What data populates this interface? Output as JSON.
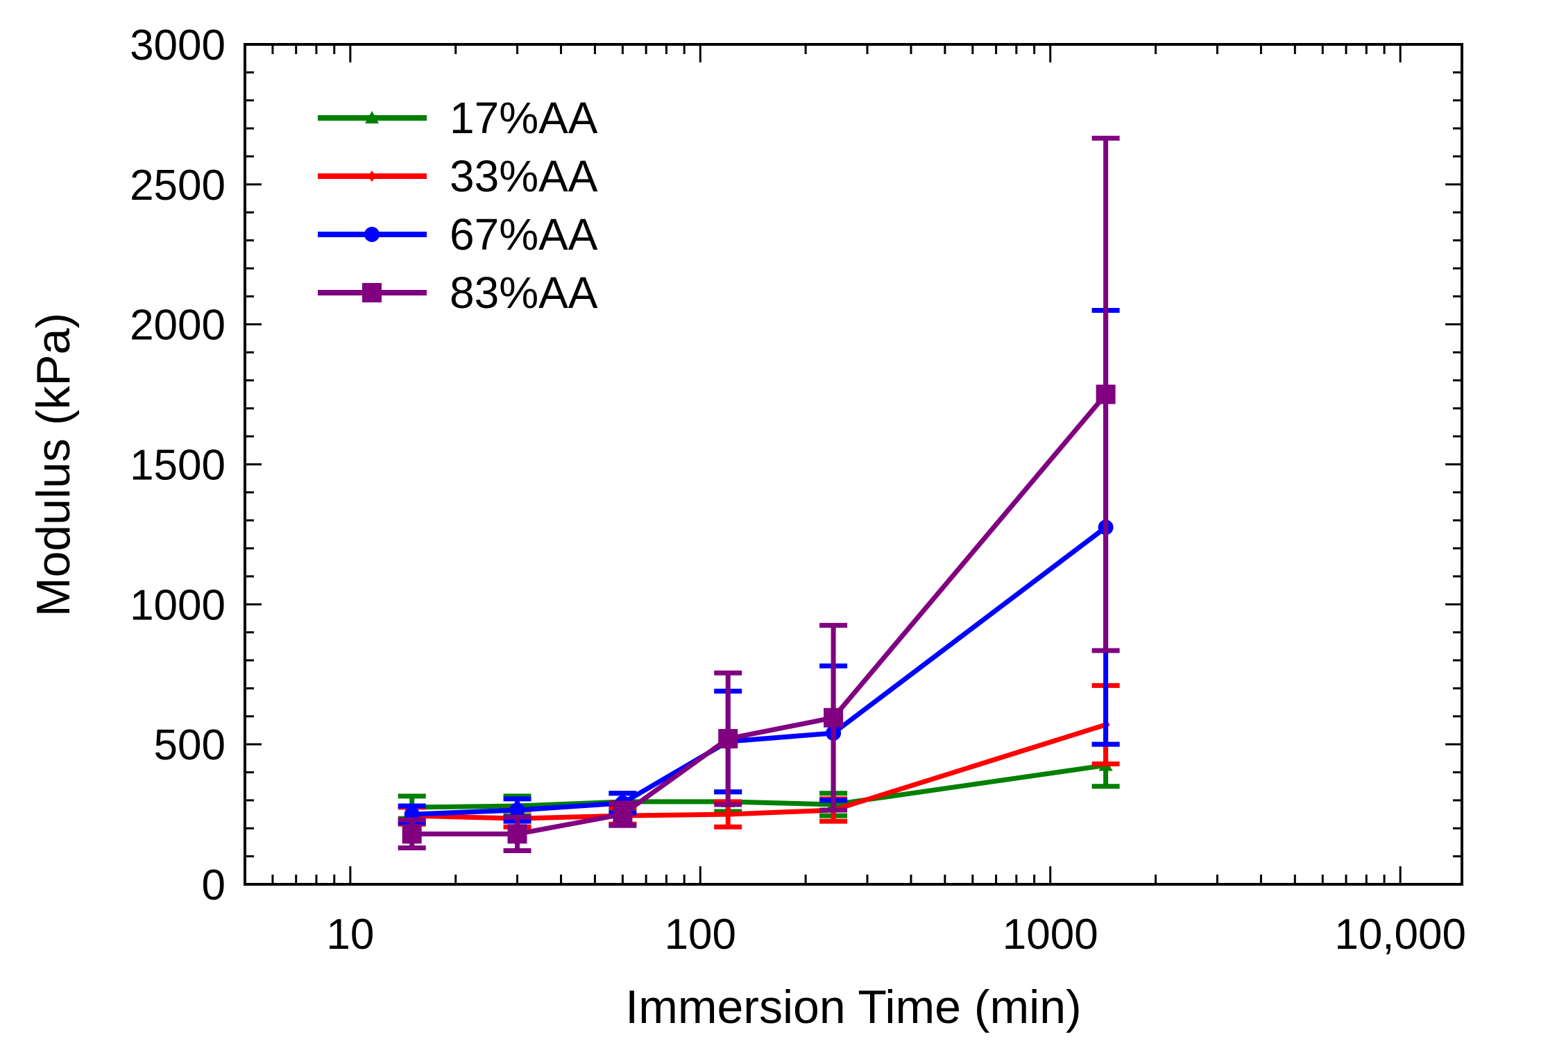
{
  "chart_data": {
    "type": "line",
    "xlabel": "Immersion Time (min)",
    "ylabel": "Modulus (kPa)",
    "x_scale": "log",
    "xlim": [
      5,
      15000
    ],
    "ylim": [
      0,
      3000
    ],
    "x_ticks": [
      10,
      100,
      1000,
      10000
    ],
    "x_tick_labels": [
      "10",
      "100",
      "1000",
      "10,000"
    ],
    "y_ticks": [
      0,
      500,
      1000,
      1500,
      2000,
      2500,
      3000
    ],
    "y_tick_labels": [
      "0",
      "500",
      "1000",
      "1500",
      "2000",
      "2500",
      "3000"
    ],
    "grid": false,
    "legend_position": "top-left",
    "x": [
      15,
      30,
      60,
      120,
      240,
      1440
    ],
    "series": [
      {
        "name": "17%AA",
        "color": "#008000",
        "marker": "triangle",
        "values": [
          275,
          280,
          295,
          295,
          285,
          425
        ],
        "error": [
          40,
          35,
          30,
          35,
          40,
          75
        ]
      },
      {
        "name": "33%AA",
        "color": "#ff0000",
        "marker": "diamond",
        "values": [
          245,
          235,
          245,
          250,
          265,
          570
        ],
        "error": [
          30,
          30,
          30,
          45,
          40,
          140
        ]
      },
      {
        "name": "67%AA",
        "color": "#0000ff",
        "marker": "circle",
        "values": [
          250,
          265,
          290,
          510,
          540,
          1275
        ],
        "error": [
          30,
          40,
          35,
          180,
          240,
          775
        ]
      },
      {
        "name": "83%AA",
        "color": "#800080",
        "marker": "square",
        "values": [
          180,
          180,
          250,
          520,
          595,
          1750
        ],
        "error": [
          50,
          60,
          40,
          235,
          330,
          915
        ]
      }
    ]
  }
}
